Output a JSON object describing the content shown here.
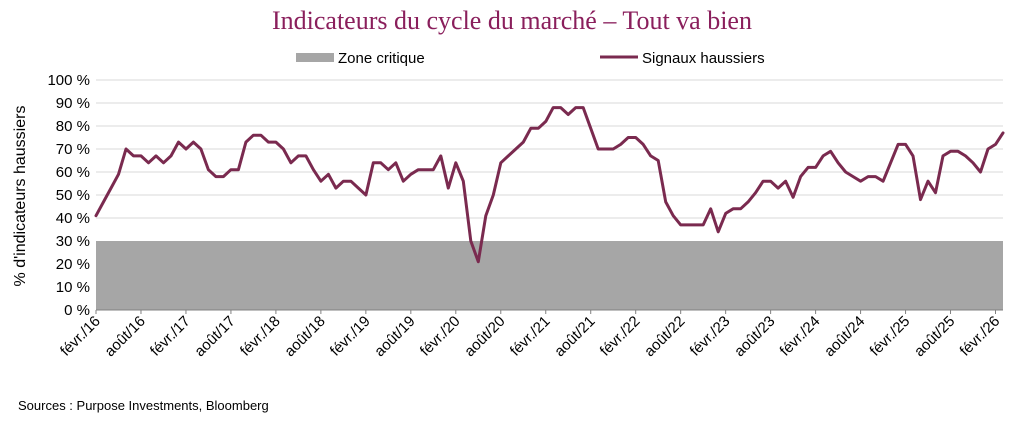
{
  "chart_data": {
    "type": "line",
    "title": "Indicateurs du cycle du marché – Tout va bien",
    "ylabel": "% d'indicateurs haussiers",
    "xlabel": "",
    "ylim": [
      0,
      100
    ],
    "y_ticks": [
      "0 %",
      "10 %",
      "20 %",
      "30 %",
      "40 %",
      "50 %",
      "60 %",
      "70 %",
      "80 %",
      "90 %",
      "100 %"
    ],
    "x_ticks": [
      "févr./16",
      "août/16",
      "févr./17",
      "août/17",
      "févr./18",
      "août/18",
      "févr./19",
      "août/19",
      "févr./20",
      "août/20",
      "févr./21",
      "août/21",
      "févr./22",
      "août/22",
      "févr./23",
      "août/23",
      "févr./24",
      "août/24",
      "févr./25",
      "août/25",
      "févr./26"
    ],
    "grid": true,
    "legend_position": "top",
    "critical_zone": {
      "name": "Zone critique",
      "from": 0,
      "to": 30,
      "color": "#a6a6a6"
    },
    "series": [
      {
        "name": "Signaux haussiers",
        "color": "#7a2a4f",
        "x": [
          0,
          1,
          2,
          3,
          4,
          5,
          6,
          7,
          8,
          9,
          10,
          11,
          12,
          13,
          14,
          15,
          16,
          17,
          18,
          19,
          20,
          21,
          22,
          23,
          24,
          25,
          26,
          27,
          28,
          29,
          30,
          31,
          32,
          33,
          34,
          35,
          36,
          37,
          38,
          39,
          40,
          41,
          42,
          43,
          44,
          45,
          46,
          47,
          48,
          49,
          50,
          51,
          52,
          53,
          54,
          55,
          56,
          57,
          58,
          59,
          60,
          61,
          62,
          63,
          64,
          65,
          66,
          67,
          68,
          69,
          70,
          71,
          72,
          73,
          74,
          75,
          76,
          77,
          78,
          79,
          80,
          81,
          82,
          83,
          84,
          85,
          86,
          87,
          88,
          89,
          90,
          91,
          92,
          93,
          94,
          95,
          96,
          97,
          98,
          99,
          100,
          101,
          102,
          103,
          104,
          105,
          106,
          107,
          108,
          109,
          110,
          111,
          112,
          113,
          114,
          115,
          116,
          117,
          118,
          119,
          120,
          121
        ],
        "values": [
          41,
          47,
          53,
          59,
          70,
          67,
          67,
          64,
          67,
          64,
          67,
          73,
          70,
          73,
          70,
          61,
          58,
          58,
          61,
          61,
          73,
          76,
          76,
          73,
          73,
          70,
          64,
          67,
          67,
          61,
          56,
          59,
          53,
          56,
          56,
          53,
          50,
          64,
          64,
          61,
          64,
          56,
          59,
          61,
          61,
          61,
          67,
          53,
          64,
          56,
          30,
          21,
          41,
          50,
          64,
          67,
          70,
          73,
          79,
          79,
          82,
          88,
          88,
          85,
          88,
          88,
          79,
          70,
          70,
          70,
          72,
          75,
          75,
          72,
          67,
          65,
          47,
          41,
          37,
          37,
          37,
          37,
          44,
          34,
          42,
          44,
          44,
          47,
          51,
          56,
          56,
          53,
          56,
          49,
          58,
          62,
          62,
          67,
          69,
          64,
          60,
          58,
          56,
          58,
          58,
          56,
          64,
          72,
          72,
          67,
          48,
          56,
          51,
          67,
          69,
          69,
          67,
          64,
          60,
          70,
          72,
          77
        ]
      }
    ],
    "x_ticks_at": [
      0,
      6,
      12,
      18,
      24,
      30,
      36,
      42,
      48,
      54,
      60,
      66,
      72,
      78,
      84,
      90,
      96,
      102,
      108,
      114,
      120
    ]
  },
  "source": "Sources : Purpose Investments, Bloomberg"
}
